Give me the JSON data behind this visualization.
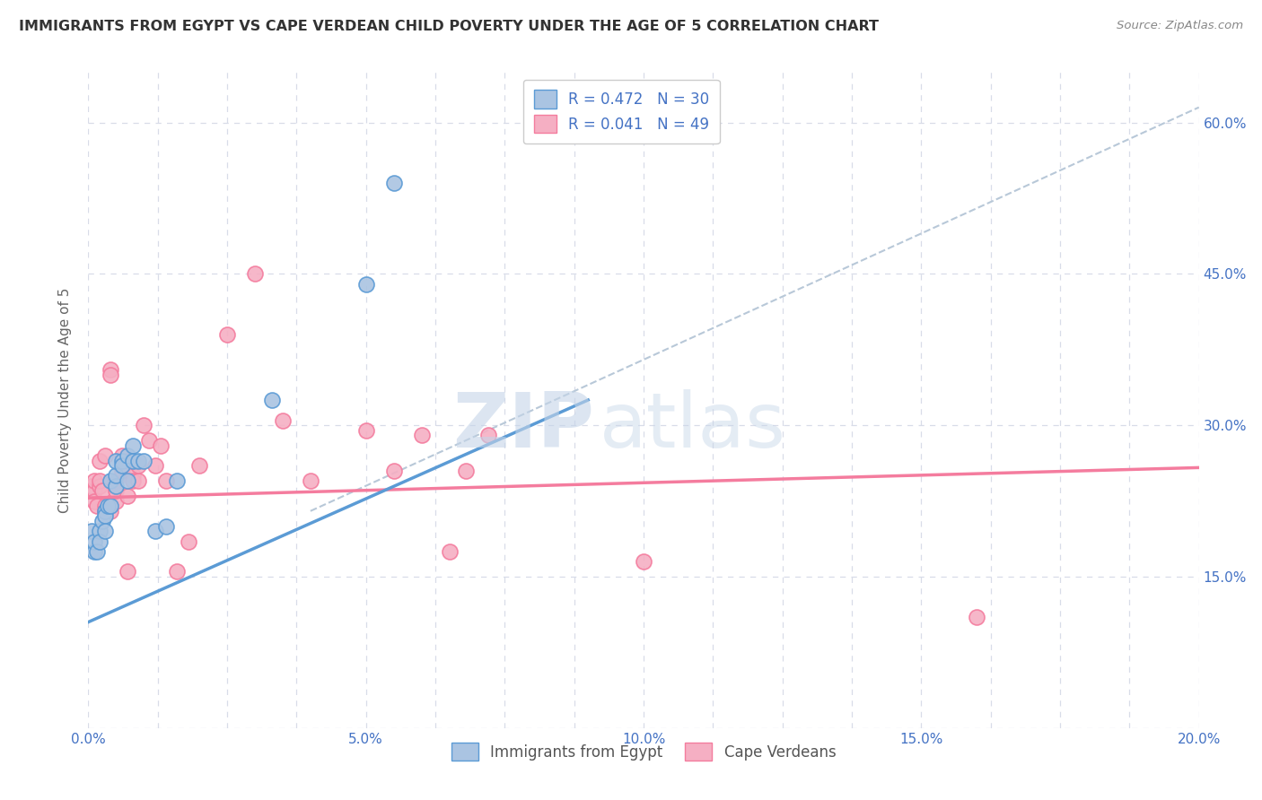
{
  "title": "IMMIGRANTS FROM EGYPT VS CAPE VERDEAN CHILD POVERTY UNDER THE AGE OF 5 CORRELATION CHART",
  "source": "Source: ZipAtlas.com",
  "ylabel": "Child Poverty Under the Age of 5",
  "xlim": [
    0.0,
    0.2
  ],
  "ylim": [
    0.0,
    0.65
  ],
  "ytick_positions": [
    0.0,
    0.15,
    0.3,
    0.45,
    0.6
  ],
  "ytick_labels": [
    "",
    "15.0%",
    "30.0%",
    "45.0%",
    "60.0%"
  ],
  "legend_items": [
    {
      "label": "R = 0.472   N = 30",
      "color": "#a8c4e0"
    },
    {
      "label": "R = 0.041   N = 49",
      "color": "#f4a7b9"
    }
  ],
  "legend_bottom": [
    {
      "label": "Immigrants from Egypt",
      "color": "#a8c4e0"
    },
    {
      "label": "Cape Verdeans",
      "color": "#f4a7b9"
    }
  ],
  "blue_scatter_x": [
    0.0005,
    0.001,
    0.001,
    0.0015,
    0.002,
    0.002,
    0.0025,
    0.003,
    0.003,
    0.003,
    0.0035,
    0.004,
    0.004,
    0.005,
    0.005,
    0.005,
    0.006,
    0.006,
    0.007,
    0.007,
    0.008,
    0.008,
    0.009,
    0.01,
    0.012,
    0.014,
    0.016,
    0.033,
    0.05,
    0.055
  ],
  "blue_scatter_y": [
    0.195,
    0.175,
    0.185,
    0.175,
    0.195,
    0.185,
    0.205,
    0.215,
    0.21,
    0.195,
    0.22,
    0.245,
    0.22,
    0.24,
    0.25,
    0.265,
    0.265,
    0.26,
    0.27,
    0.245,
    0.28,
    0.265,
    0.265,
    0.265,
    0.195,
    0.2,
    0.245,
    0.325,
    0.44,
    0.54
  ],
  "pink_scatter_x": [
    0.0003,
    0.0005,
    0.001,
    0.001,
    0.001,
    0.0015,
    0.002,
    0.002,
    0.002,
    0.0025,
    0.003,
    0.003,
    0.003,
    0.003,
    0.004,
    0.004,
    0.004,
    0.005,
    0.005,
    0.005,
    0.006,
    0.006,
    0.007,
    0.007,
    0.007,
    0.008,
    0.008,
    0.009,
    0.009,
    0.01,
    0.011,
    0.012,
    0.013,
    0.014,
    0.016,
    0.018,
    0.02,
    0.025,
    0.03,
    0.035,
    0.04,
    0.05,
    0.055,
    0.06,
    0.065,
    0.068,
    0.072,
    0.1,
    0.16
  ],
  "pink_scatter_y": [
    0.235,
    0.24,
    0.235,
    0.245,
    0.225,
    0.22,
    0.24,
    0.265,
    0.245,
    0.235,
    0.22,
    0.215,
    0.215,
    0.27,
    0.355,
    0.35,
    0.215,
    0.225,
    0.245,
    0.235,
    0.255,
    0.27,
    0.265,
    0.155,
    0.23,
    0.25,
    0.245,
    0.245,
    0.26,
    0.3,
    0.285,
    0.26,
    0.28,
    0.245,
    0.155,
    0.185,
    0.26,
    0.39,
    0.45,
    0.305,
    0.245,
    0.295,
    0.255,
    0.29,
    0.175,
    0.255,
    0.29,
    0.165,
    0.11
  ],
  "blue_line_x": [
    0.0,
    0.09
  ],
  "blue_line_y": [
    0.105,
    0.325
  ],
  "pink_line_x": [
    0.0,
    0.2
  ],
  "pink_line_y": [
    0.228,
    0.258
  ],
  "dashed_line_x": [
    0.04,
    0.2
  ],
  "dashed_line_y": [
    0.215,
    0.615
  ],
  "title_color": "#333333",
  "blue_color": "#5b9bd5",
  "pink_color": "#f47c9e",
  "blue_scatter_color": "#aac4e2",
  "pink_scatter_color": "#f5afc3",
  "dashed_color": "#b8c8d8",
  "axis_color": "#4472c4",
  "watermark_zip": "ZIP",
  "watermark_atlas": "atlas",
  "background_color": "#ffffff",
  "grid_color": "#d8dce8"
}
